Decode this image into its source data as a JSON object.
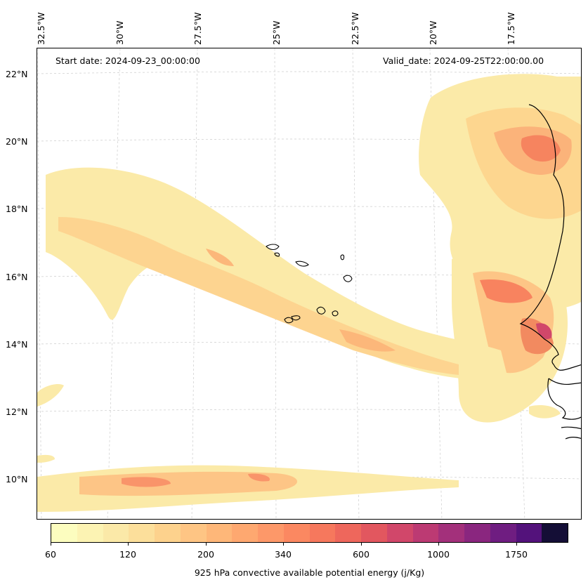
{
  "map": {
    "start_date": "Start date: 2024-09-23_00:00:00",
    "valid_date": "Valid_date: 2024-09-25T22:00:00.00",
    "lon_labels": [
      "32.5°W",
      "30°W",
      "27.5°W",
      "25°W",
      "22.5°W",
      "20°W",
      "17.5°W"
    ],
    "lat_labels": [
      "22°N",
      "20°N",
      "18°N",
      "16°N",
      "14°N",
      "12°N",
      "10°N"
    ]
  },
  "colorbar": {
    "title": "925 hPa convective available potential energy (j/Kg)",
    "tick_labels": [
      "60",
      "120",
      "200",
      "340",
      "600",
      "1000",
      "1750"
    ],
    "colors": [
      "#fcfdbf",
      "#fcf3b3",
      "#fbe9a8",
      "#fcdf9b",
      "#fdd28d",
      "#fec584",
      "#feb779",
      "#fea870",
      "#fd9869",
      "#fb8861",
      "#f6785d",
      "#ee675c",
      "#e2575f",
      "#d1476a",
      "#bc3a73",
      "#a3307b",
      "#8a267f",
      "#6f1d81",
      "#53127b",
      "#140e36"
    ],
    "colors_named": [
      "pale-yellow",
      "deep-purple"
    ]
  }
}
